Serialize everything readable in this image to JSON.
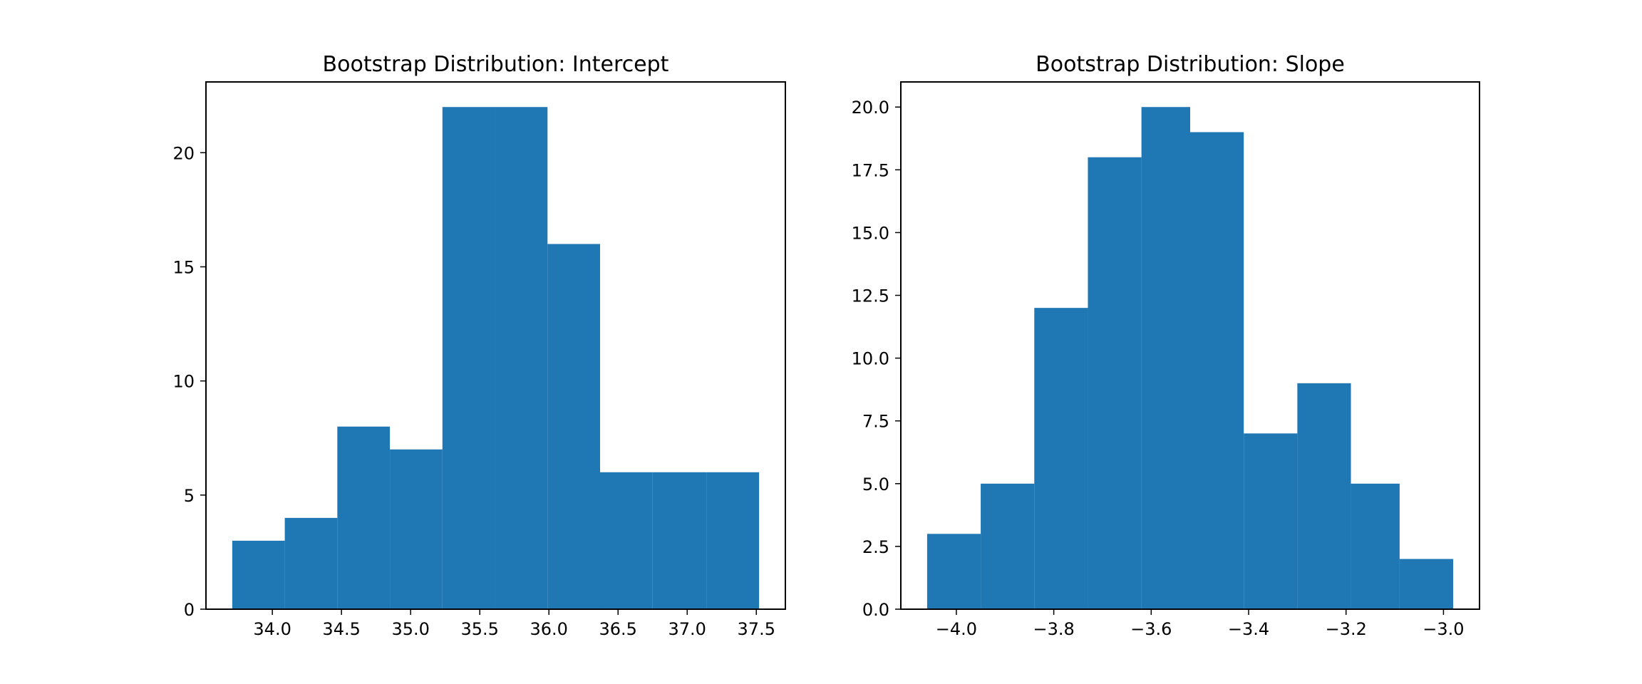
{
  "chart_data": [
    {
      "type": "bar",
      "title": "Bootstrap Distribution: Intercept",
      "xlabel": "",
      "ylabel": "",
      "bin_edges": [
        33.71,
        34.09,
        34.47,
        34.85,
        35.23,
        35.61,
        35.99,
        36.37,
        36.75,
        37.14,
        37.52
      ],
      "values": [
        3,
        4,
        8,
        7,
        22,
        22,
        16,
        6,
        6,
        6
      ],
      "xlim": [
        33.52,
        37.71
      ],
      "ylim": [
        0,
        23.1
      ],
      "xticks": [
        34.0,
        34.5,
        35.0,
        35.5,
        36.0,
        36.5,
        37.0,
        37.5
      ],
      "xtick_labels": [
        "34.0",
        "34.5",
        "35.0",
        "35.5",
        "36.0",
        "36.5",
        "37.0",
        "37.5"
      ],
      "yticks": [
        0,
        5,
        10,
        15,
        20
      ],
      "ytick_labels": [
        "0",
        "5",
        "10",
        "15",
        "20"
      ],
      "grid": false,
      "color": "#1f77b4"
    },
    {
      "type": "bar",
      "title": "Bootstrap Distribution: Slope",
      "xlabel": "",
      "ylabel": "",
      "bin_edges": [
        -4.06,
        -3.95,
        -3.84,
        -3.73,
        -3.62,
        -3.52,
        -3.41,
        -3.3,
        -3.19,
        -3.09,
        -2.98
      ],
      "values": [
        3,
        5,
        12,
        18,
        20,
        19,
        7,
        9,
        5,
        2
      ],
      "xlim": [
        -4.114,
        -2.926
      ],
      "ylim": [
        0,
        21
      ],
      "xticks": [
        -4.0,
        -3.8,
        -3.6,
        -3.4,
        -3.2,
        -3.0
      ],
      "xtick_labels": [
        "−4.0",
        "−3.8",
        "−3.6",
        "−3.4",
        "−3.2",
        "−3.0"
      ],
      "yticks": [
        0,
        2.5,
        5,
        7.5,
        10,
        12.5,
        15,
        17.5,
        20
      ],
      "ytick_labels": [
        "0.0",
        "2.5",
        "5.0",
        "7.5",
        "10.0",
        "12.5",
        "15.0",
        "17.5",
        "20.0"
      ],
      "grid": false,
      "color": "#1f77b4"
    }
  ]
}
